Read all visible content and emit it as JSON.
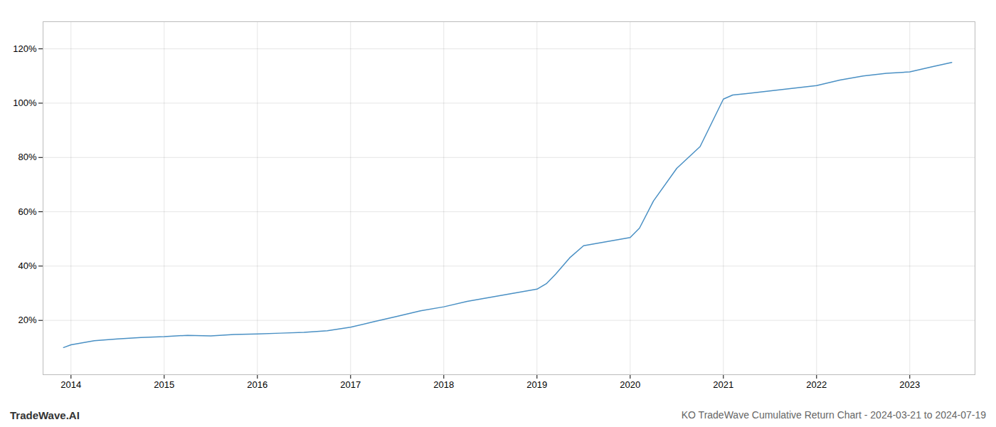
{
  "chart_data": {
    "type": "line",
    "title": "KO TradeWave Cumulative Return Chart - 2024-03-21 to 2024-07-19",
    "annotations": [
      "TradeWave.AI"
    ],
    "color": "#4a90c4",
    "grid": true,
    "x": [
      2013.92,
      2014.0,
      2014.25,
      2014.5,
      2014.75,
      2015.0,
      2015.25,
      2015.5,
      2015.75,
      2016.0,
      2016.25,
      2016.5,
      2016.75,
      2017.0,
      2017.25,
      2017.5,
      2017.75,
      2018.0,
      2018.25,
      2018.5,
      2018.75,
      2019.0,
      2019.1,
      2019.2,
      2019.35,
      2019.5,
      2019.75,
      2020.0,
      2020.1,
      2020.25,
      2020.5,
      2020.75,
      2021.0,
      2021.1,
      2021.25,
      2021.5,
      2021.75,
      2022.0,
      2022.25,
      2022.5,
      2022.75,
      2023.0,
      2023.25,
      2023.45
    ],
    "values": [
      10.0,
      11.0,
      12.5,
      13.2,
      13.7,
      14.0,
      14.5,
      14.3,
      14.8,
      15.0,
      15.3,
      15.6,
      16.2,
      17.5,
      19.5,
      21.5,
      23.5,
      25.0,
      27.0,
      28.5,
      30.0,
      31.5,
      33.5,
      37.0,
      43.0,
      47.5,
      49.0,
      50.5,
      54.0,
      64.0,
      76.0,
      84.0,
      101.5,
      103.0,
      103.5,
      104.5,
      105.5,
      106.5,
      108.5,
      110.0,
      111.0,
      111.5,
      113.5,
      115.0
    ],
    "xlim": [
      2013.7,
      2023.7
    ],
    "xticks": [
      2014,
      2015,
      2016,
      2017,
      2018,
      2019,
      2020,
      2021,
      2022,
      2023
    ],
    "ylim": [
      0,
      130
    ],
    "yticks": [
      {
        "value": 20,
        "label": "20%"
      },
      {
        "value": 40,
        "label": "40%"
      },
      {
        "value": 60,
        "label": "60%"
      },
      {
        "value": 80,
        "label": "80%"
      },
      {
        "value": 100,
        "label": "100%"
      },
      {
        "value": 120,
        "label": "120%"
      }
    ]
  }
}
